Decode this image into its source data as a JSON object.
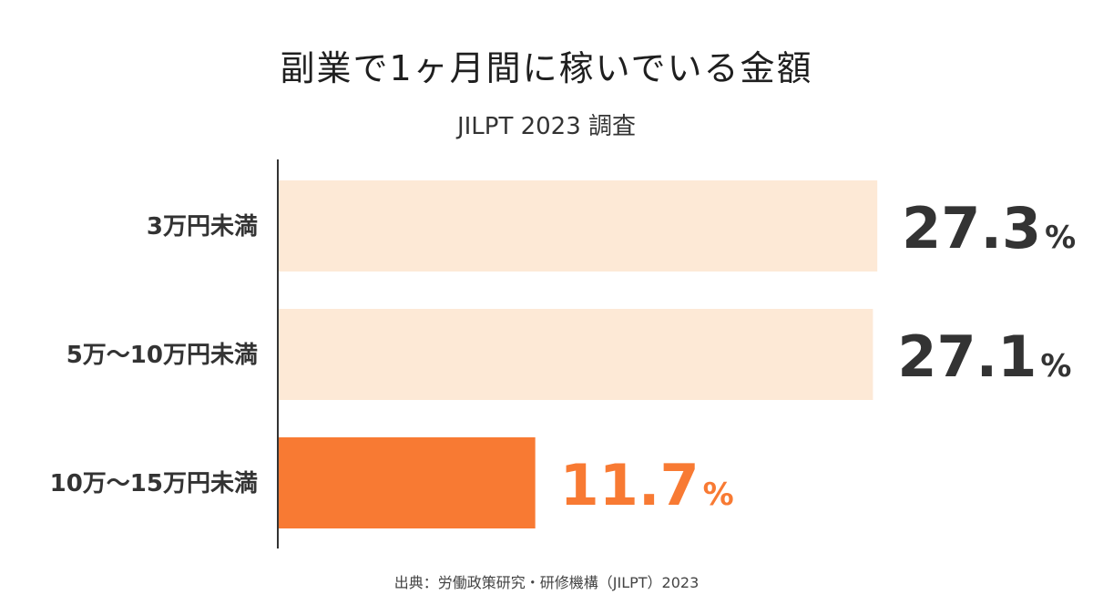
{
  "chart_data": {
    "type": "bar",
    "orientation": "horizontal",
    "title": "副業で1ヶ月間に稼いでいる金額",
    "subtitle": "JILPT 2023 調査",
    "categories": [
      "3万円未満",
      "5万〜10万円未満",
      "10万〜15万円未満"
    ],
    "values": [
      27.3,
      27.1,
      11.7
    ],
    "value_labels": [
      "27.3",
      "27.1",
      "11.7"
    ],
    "unit": "%",
    "xlim": [
      0,
      27.5
    ],
    "grid": false,
    "legend": "none",
    "colors": {
      "bar_default": "#fde9d6",
      "bar_highlight": "#f87a33",
      "label_default": "#333333",
      "label_highlight": "#f87a33",
      "axis": "#333333"
    },
    "highlight_index": 2
  },
  "footer": {
    "source": "出典：労働政策研究・研修機構（JILPT）2023"
  }
}
